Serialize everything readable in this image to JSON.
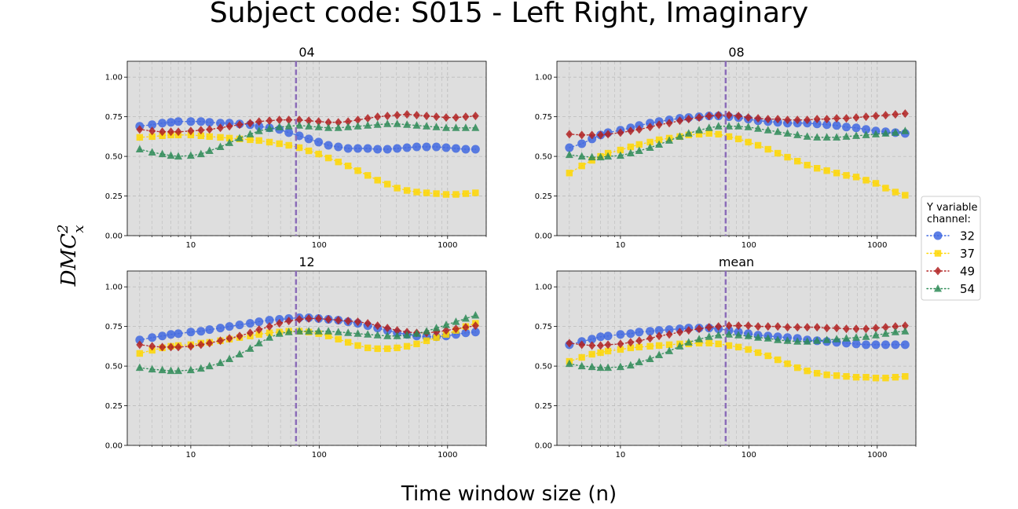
{
  "figure": {
    "title": "Subject code: S015 - Left Right, Imaginary",
    "xlabel": "Time window size (n)",
    "ylabel_base": "DMC",
    "ylabel_sup": "2",
    "ylabel_sub": "x"
  },
  "legend": {
    "title_line1": "Y variable",
    "title_line2": "channel:",
    "placement": "right-center",
    "entries": [
      {
        "label": "32",
        "color": "#4169E1",
        "marker": "circle"
      },
      {
        "label": "37",
        "color": "#FFD700",
        "marker": "square"
      },
      {
        "label": "49",
        "color": "#B22222",
        "marker": "diamond"
      },
      {
        "label": "54",
        "color": "#2E8B57",
        "marker": "triangle"
      }
    ]
  },
  "style": {
    "axes_bg": "#DEDEDE",
    "grid_color": "#BBBBBB",
    "vline_color": "#8B6CB8"
  },
  "chart_data": [
    {
      "type": "line",
      "title": "04",
      "xscale": "log",
      "xlim": [
        3.2,
        2000
      ],
      "ylim": [
        0,
        1.1
      ],
      "xticks": [
        10,
        100,
        1000
      ],
      "xtick_labels": [
        "10",
        "100",
        "1000"
      ],
      "yticks": [
        0.0,
        0.25,
        0.5,
        0.75,
        1.0
      ],
      "ytick_labels": [
        "0.00",
        "0.25",
        "0.50",
        "0.75",
        "1.00"
      ],
      "grid": true,
      "vline": 66,
      "x": [
        4,
        5,
        6,
        7,
        8,
        10,
        12,
        14,
        17,
        20,
        24,
        29,
        34,
        41,
        49,
        58,
        70,
        83,
        99,
        118,
        141,
        168,
        200,
        239,
        285,
        340,
        405,
        483,
        575,
        686,
        818,
        975,
        1162,
        1385,
        1650
      ],
      "series": [
        {
          "name": "32",
          "values": [
            0.69,
            0.7,
            0.71,
            0.715,
            0.72,
            0.72,
            0.72,
            0.715,
            0.71,
            0.71,
            0.705,
            0.7,
            0.69,
            0.68,
            0.67,
            0.65,
            0.63,
            0.61,
            0.59,
            0.57,
            0.56,
            0.55,
            0.55,
            0.55,
            0.545,
            0.545,
            0.55,
            0.555,
            0.56,
            0.56,
            0.56,
            0.555,
            0.55,
            0.545,
            0.545
          ]
        },
        {
          "name": "37",
          "values": [
            0.62,
            0.625,
            0.63,
            0.635,
            0.635,
            0.635,
            0.63,
            0.625,
            0.62,
            0.615,
            0.61,
            0.605,
            0.6,
            0.59,
            0.58,
            0.57,
            0.555,
            0.535,
            0.515,
            0.49,
            0.465,
            0.44,
            0.41,
            0.38,
            0.35,
            0.325,
            0.3,
            0.285,
            0.275,
            0.27,
            0.265,
            0.26,
            0.26,
            0.265,
            0.27
          ]
        },
        {
          "name": "49",
          "values": [
            0.67,
            0.66,
            0.655,
            0.655,
            0.655,
            0.66,
            0.665,
            0.67,
            0.68,
            0.69,
            0.7,
            0.71,
            0.72,
            0.725,
            0.73,
            0.73,
            0.73,
            0.725,
            0.72,
            0.715,
            0.715,
            0.72,
            0.73,
            0.74,
            0.75,
            0.755,
            0.76,
            0.765,
            0.76,
            0.755,
            0.75,
            0.745,
            0.745,
            0.75,
            0.755
          ]
        },
        {
          "name": "54",
          "values": [
            0.545,
            0.525,
            0.515,
            0.505,
            0.5,
            0.505,
            0.515,
            0.535,
            0.56,
            0.585,
            0.615,
            0.64,
            0.66,
            0.675,
            0.685,
            0.69,
            0.695,
            0.69,
            0.685,
            0.68,
            0.68,
            0.685,
            0.69,
            0.695,
            0.7,
            0.705,
            0.705,
            0.7,
            0.695,
            0.69,
            0.685,
            0.68,
            0.68,
            0.68,
            0.68
          ]
        }
      ]
    },
    {
      "type": "line",
      "title": "08",
      "xscale": "log",
      "xlim": [
        3.2,
        2000
      ],
      "ylim": [
        0,
        1.1
      ],
      "xticks": [
        10,
        100,
        1000
      ],
      "xtick_labels": [
        "10",
        "100",
        "1000"
      ],
      "yticks": [
        0.0,
        0.25,
        0.5,
        0.75,
        1.0
      ],
      "ytick_labels": [
        "0.00",
        "0.25",
        "0.50",
        "0.75",
        "1.00"
      ],
      "grid": true,
      "vline": 66,
      "x": [
        4,
        5,
        6,
        7,
        8,
        10,
        12,
        14,
        17,
        20,
        24,
        29,
        34,
        41,
        49,
        58,
        70,
        83,
        99,
        118,
        141,
        168,
        200,
        239,
        285,
        340,
        405,
        483,
        575,
        686,
        818,
        975,
        1162,
        1385,
        1650
      ],
      "series": [
        {
          "name": "32",
          "values": [
            0.555,
            0.58,
            0.61,
            0.635,
            0.65,
            0.665,
            0.68,
            0.695,
            0.71,
            0.72,
            0.73,
            0.74,
            0.745,
            0.75,
            0.755,
            0.755,
            0.75,
            0.745,
            0.735,
            0.725,
            0.72,
            0.715,
            0.71,
            0.71,
            0.71,
            0.705,
            0.7,
            0.695,
            0.685,
            0.68,
            0.67,
            0.66,
            0.655,
            0.65,
            0.645
          ]
        },
        {
          "name": "37",
          "values": [
            0.395,
            0.44,
            0.475,
            0.5,
            0.52,
            0.54,
            0.56,
            0.575,
            0.59,
            0.605,
            0.615,
            0.625,
            0.635,
            0.64,
            0.645,
            0.64,
            0.625,
            0.61,
            0.59,
            0.57,
            0.545,
            0.52,
            0.495,
            0.47,
            0.445,
            0.425,
            0.41,
            0.395,
            0.38,
            0.37,
            0.35,
            0.33,
            0.3,
            0.275,
            0.255
          ]
        },
        {
          "name": "49",
          "values": [
            0.64,
            0.635,
            0.635,
            0.635,
            0.64,
            0.65,
            0.66,
            0.67,
            0.685,
            0.7,
            0.71,
            0.725,
            0.735,
            0.745,
            0.755,
            0.76,
            0.76,
            0.755,
            0.745,
            0.74,
            0.735,
            0.735,
            0.73,
            0.73,
            0.73,
            0.735,
            0.735,
            0.74,
            0.74,
            0.745,
            0.75,
            0.755,
            0.76,
            0.765,
            0.77
          ]
        },
        {
          "name": "54",
          "values": [
            0.51,
            0.5,
            0.495,
            0.495,
            0.5,
            0.505,
            0.52,
            0.535,
            0.555,
            0.575,
            0.6,
            0.625,
            0.645,
            0.665,
            0.68,
            0.69,
            0.69,
            0.69,
            0.685,
            0.675,
            0.665,
            0.655,
            0.645,
            0.635,
            0.625,
            0.62,
            0.62,
            0.62,
            0.625,
            0.63,
            0.635,
            0.64,
            0.645,
            0.65,
            0.66
          ]
        }
      ]
    },
    {
      "type": "line",
      "title": "12",
      "xscale": "log",
      "xlim": [
        3.2,
        2000
      ],
      "ylim": [
        0,
        1.1
      ],
      "xticks": [
        10,
        100,
        1000
      ],
      "xtick_labels": [
        "10",
        "100",
        "1000"
      ],
      "yticks": [
        0.0,
        0.25,
        0.5,
        0.75,
        1.0
      ],
      "ytick_labels": [
        "0.00",
        "0.25",
        "0.50",
        "0.75",
        "1.00"
      ],
      "grid": true,
      "vline": 66,
      "x": [
        4,
        5,
        6,
        7,
        8,
        10,
        12,
        14,
        17,
        20,
        24,
        29,
        34,
        41,
        49,
        58,
        70,
        83,
        99,
        118,
        141,
        168,
        200,
        239,
        285,
        340,
        405,
        483,
        575,
        686,
        818,
        975,
        1162,
        1385,
        1650
      ],
      "series": [
        {
          "name": "32",
          "values": [
            0.665,
            0.68,
            0.69,
            0.7,
            0.705,
            0.715,
            0.72,
            0.73,
            0.74,
            0.75,
            0.76,
            0.77,
            0.78,
            0.79,
            0.795,
            0.8,
            0.805,
            0.805,
            0.8,
            0.795,
            0.79,
            0.78,
            0.77,
            0.755,
            0.74,
            0.725,
            0.71,
            0.7,
            0.69,
            0.685,
            0.685,
            0.69,
            0.7,
            0.71,
            0.715
          ]
        },
        {
          "name": "37",
          "values": [
            0.58,
            0.6,
            0.615,
            0.625,
            0.63,
            0.635,
            0.645,
            0.65,
            0.66,
            0.67,
            0.68,
            0.69,
            0.7,
            0.71,
            0.715,
            0.72,
            0.72,
            0.715,
            0.705,
            0.69,
            0.67,
            0.65,
            0.63,
            0.615,
            0.61,
            0.61,
            0.615,
            0.625,
            0.64,
            0.66,
            0.68,
            0.7,
            0.725,
            0.75,
            0.77
          ]
        },
        {
          "name": "49",
          "values": [
            0.635,
            0.625,
            0.62,
            0.62,
            0.62,
            0.625,
            0.635,
            0.645,
            0.66,
            0.675,
            0.69,
            0.71,
            0.73,
            0.75,
            0.77,
            0.785,
            0.795,
            0.8,
            0.8,
            0.795,
            0.79,
            0.785,
            0.78,
            0.77,
            0.755,
            0.74,
            0.725,
            0.715,
            0.71,
            0.71,
            0.715,
            0.725,
            0.735,
            0.745,
            0.755
          ]
        },
        {
          "name": "54",
          "values": [
            0.49,
            0.48,
            0.475,
            0.47,
            0.47,
            0.475,
            0.485,
            0.5,
            0.52,
            0.545,
            0.575,
            0.61,
            0.645,
            0.68,
            0.705,
            0.715,
            0.72,
            0.72,
            0.72,
            0.72,
            0.715,
            0.71,
            0.705,
            0.7,
            0.695,
            0.69,
            0.69,
            0.695,
            0.705,
            0.72,
            0.74,
            0.76,
            0.78,
            0.8,
            0.82
          ]
        }
      ]
    },
    {
      "type": "line",
      "title": "mean",
      "xscale": "log",
      "xlim": [
        3.2,
        2000
      ],
      "ylim": [
        0,
        1.1
      ],
      "xticks": [
        10,
        100,
        1000
      ],
      "xtick_labels": [
        "10",
        "100",
        "1000"
      ],
      "yticks": [
        0.0,
        0.25,
        0.5,
        0.75,
        1.0
      ],
      "ytick_labels": [
        "0.00",
        "0.25",
        "0.50",
        "0.75",
        "1.00"
      ],
      "grid": true,
      "vline": 66,
      "x": [
        4,
        5,
        6,
        7,
        8,
        10,
        12,
        14,
        17,
        20,
        24,
        29,
        34,
        41,
        49,
        58,
        70,
        83,
        99,
        118,
        141,
        168,
        200,
        239,
        285,
        340,
        405,
        483,
        575,
        686,
        818,
        975,
        1162,
        1385,
        1650
      ],
      "series": [
        {
          "name": "32",
          "values": [
            0.635,
            0.655,
            0.67,
            0.685,
            0.69,
            0.7,
            0.705,
            0.715,
            0.72,
            0.725,
            0.73,
            0.735,
            0.74,
            0.74,
            0.74,
            0.735,
            0.725,
            0.715,
            0.705,
            0.695,
            0.69,
            0.685,
            0.68,
            0.675,
            0.665,
            0.66,
            0.655,
            0.65,
            0.645,
            0.64,
            0.635,
            0.635,
            0.635,
            0.635,
            0.635
          ]
        },
        {
          "name": "37",
          "values": [
            0.53,
            0.555,
            0.575,
            0.585,
            0.595,
            0.605,
            0.615,
            0.62,
            0.625,
            0.63,
            0.635,
            0.64,
            0.64,
            0.645,
            0.645,
            0.64,
            0.63,
            0.62,
            0.605,
            0.585,
            0.565,
            0.54,
            0.515,
            0.49,
            0.47,
            0.455,
            0.445,
            0.44,
            0.435,
            0.43,
            0.43,
            0.425,
            0.425,
            0.43,
            0.435
          ]
        },
        {
          "name": "49",
          "values": [
            0.645,
            0.635,
            0.63,
            0.63,
            0.635,
            0.64,
            0.65,
            0.66,
            0.675,
            0.69,
            0.7,
            0.715,
            0.725,
            0.735,
            0.745,
            0.75,
            0.755,
            0.755,
            0.755,
            0.75,
            0.75,
            0.75,
            0.745,
            0.745,
            0.745,
            0.745,
            0.74,
            0.74,
            0.735,
            0.735,
            0.735,
            0.74,
            0.745,
            0.75,
            0.755
          ]
        },
        {
          "name": "54",
          "values": [
            0.515,
            0.5,
            0.495,
            0.49,
            0.49,
            0.495,
            0.505,
            0.525,
            0.545,
            0.57,
            0.595,
            0.625,
            0.65,
            0.67,
            0.685,
            0.695,
            0.7,
            0.695,
            0.69,
            0.68,
            0.675,
            0.665,
            0.66,
            0.655,
            0.655,
            0.66,
            0.665,
            0.67,
            0.675,
            0.68,
            0.685,
            0.695,
            0.705,
            0.715,
            0.72
          ]
        }
      ]
    }
  ]
}
